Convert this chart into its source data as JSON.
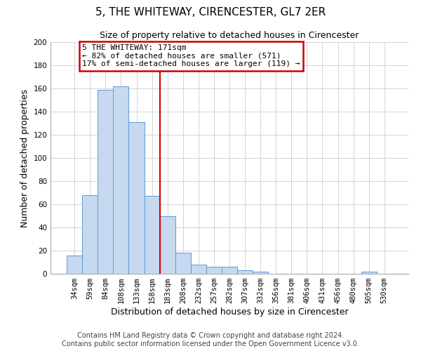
{
  "title": "5, THE WHITEWAY, CIRENCESTER, GL7 2ER",
  "subtitle": "Size of property relative to detached houses in Cirencester",
  "xlabel": "Distribution of detached houses by size in Cirencester",
  "ylabel": "Number of detached properties",
  "footer_line1": "Contains HM Land Registry data © Crown copyright and database right 2024.",
  "footer_line2": "Contains public sector information licensed under the Open Government Licence v3.0.",
  "bar_labels": [
    "34sqm",
    "59sqm",
    "84sqm",
    "108sqm",
    "133sqm",
    "158sqm",
    "183sqm",
    "208sqm",
    "232sqm",
    "257sqm",
    "282sqm",
    "307sqm",
    "332sqm",
    "356sqm",
    "381sqm",
    "406sqm",
    "431sqm",
    "456sqm",
    "480sqm",
    "505sqm",
    "530sqm"
  ],
  "bar_values": [
    16,
    68,
    159,
    162,
    131,
    67,
    50,
    18,
    8,
    6,
    6,
    3,
    2,
    0,
    0,
    0,
    0,
    0,
    0,
    2,
    0
  ],
  "bar_color": "#c6d9f0",
  "bar_edge_color": "#5b9bd5",
  "vline_color": "#cc0000",
  "vline_pos": 5.5,
  "annotation_text_line1": "5 THE WHITEWAY: 171sqm",
  "annotation_text_line2": "← 82% of detached houses are smaller (571)",
  "annotation_text_line3": "17% of semi-detached houses are larger (119) →",
  "annotation_box_edgecolor": "#cc0000",
  "ylim": [
    0,
    200
  ],
  "yticks": [
    0,
    20,
    40,
    60,
    80,
    100,
    120,
    140,
    160,
    180,
    200
  ],
  "grid_color": "#cccccc",
  "background_color": "#ffffff",
  "title_fontsize": 11,
  "subtitle_fontsize": 9,
  "axis_label_fontsize": 9,
  "tick_fontsize": 7.5,
  "footer_fontsize": 7,
  "annotation_fontsize": 8
}
